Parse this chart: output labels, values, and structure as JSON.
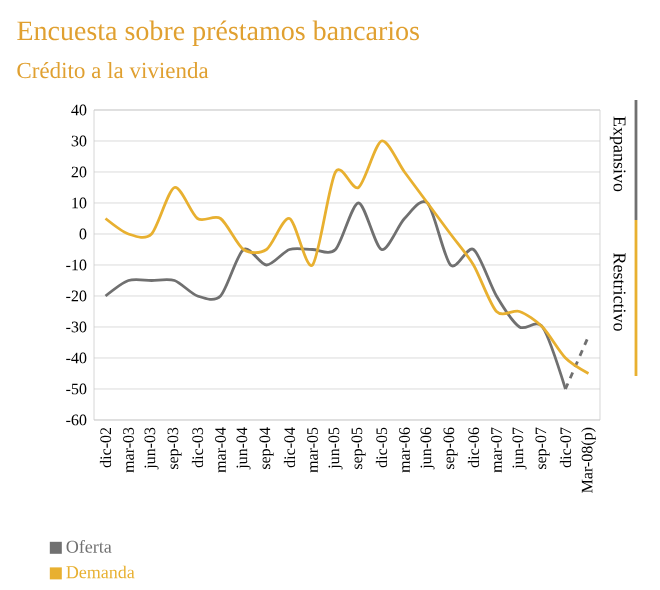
{
  "chart_data": {
    "type": "line",
    "title": "Encuesta sobre préstamos bancarios",
    "subtitle": "Crédito a la vivienda",
    "categories": [
      "dic-02",
      "mar-03",
      "jun-03",
      "sep-03",
      "dic-03",
      "mar-04",
      "jun-04",
      "sep-04",
      "dic-04",
      "mar-05",
      "jun-05",
      "sep-05",
      "dic-05",
      "mar-06",
      "jun-06",
      "sep-06",
      "dic-06",
      "mar-07",
      "jun-07",
      "sep-07",
      "dic-07",
      "Mar-08(p)"
    ],
    "series": [
      {
        "name": "Oferta",
        "color": "#707070",
        "values": [
          -20,
          -15,
          -15,
          -15,
          -20,
          -20,
          -5,
          -10,
          -5,
          -5,
          -5,
          10,
          -5,
          5,
          10,
          -10,
          -5,
          -20,
          -30,
          -30,
          -50,
          null
        ]
      },
      {
        "color": "#707070",
        "line_style": "dashed",
        "values": [
          null,
          null,
          null,
          null,
          null,
          null,
          null,
          null,
          null,
          null,
          null,
          null,
          null,
          null,
          null,
          null,
          null,
          null,
          null,
          null,
          -50,
          -33
        ]
      },
      {
        "name": "Demanda",
        "color": "#e8b030",
        "values": [
          5,
          0,
          0,
          15,
          5,
          5,
          -5,
          -5,
          5,
          -10,
          20,
          15,
          30,
          20,
          10,
          0,
          -10,
          -25,
          -25,
          -30,
          -40,
          -45
        ]
      }
    ],
    "ylim": [
      -60,
      40
    ],
    "yticks": [
      -60,
      -50,
      -40,
      -30,
      -20,
      -10,
      0,
      10,
      20,
      30,
      40
    ],
    "grid": "y",
    "legend": "bottom left",
    "line_style": "solid",
    "annotations": [
      "Expansivo",
      "Restrictivo"
    ]
  }
}
